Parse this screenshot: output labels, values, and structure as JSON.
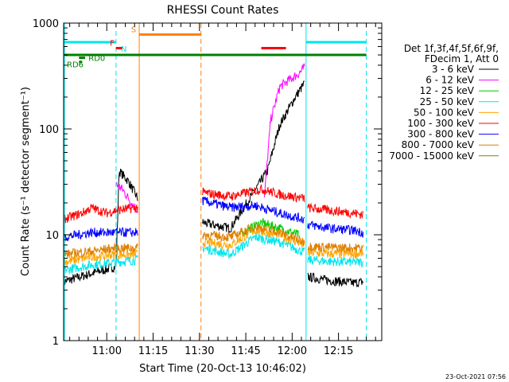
{
  "colors": {
    "background": "#ffffff",
    "axis": "#000000",
    "cyan": "#00e5ee",
    "orange": "#ff7f00",
    "red": "#ff0000",
    "green": "#008000"
  },
  "footer_timestamp": "23-Oct-2021 07:56",
  "chart_data": {
    "type": "line",
    "title": "RHESSI Count Rates",
    "xlabel": "Start Time (20-Oct-13 10:46:02)",
    "ylabel": "Count Rate (s⁻¹ detector segment⁻¹)",
    "y_scale": "log",
    "ylim": [
      1,
      1000
    ],
    "xlim": [
      "10:46:02",
      "12:29:00"
    ],
    "x_ticks": [
      "11:00",
      "11:15",
      "11:30",
      "11:45",
      "12:00",
      "12:15"
    ],
    "y_ticks": [
      "1",
      "10",
      "100",
      "1000"
    ],
    "grid": false,
    "legend_position": "right",
    "legend_header": [
      "Det 1f,3f,4f,5f,6f,9f,",
      "FDecim 1, Att 0"
    ],
    "series": [
      {
        "name": "3 - 6 keV",
        "color": "#000000",
        "segments": [
          {
            "x": [
              "10:46",
              "10:55",
              "11:03",
              "11:04",
              "11:07",
              "11:10"
            ],
            "y": [
              3.6,
              4.3,
              5.0,
              40,
              32,
              22
            ]
          },
          {
            "x": [
              "11:31",
              "11:40",
              "11:52",
              "11:56",
              "12:01",
              "12:04"
            ],
            "y": [
              13,
              11.5,
              40,
              110,
              200,
              270
            ]
          },
          {
            "x": [
              "12:05",
              "12:12",
              "12:20",
              "12:23"
            ],
            "y": [
              4.0,
              3.7,
              3.5,
              3.6
            ]
          }
        ]
      },
      {
        "name": "6 - 12 keV",
        "color": "#ff00ff",
        "segments": [
          {
            "x": [
              "11:03",
              "11:05",
              "11:08",
              "11:10"
            ],
            "y": [
              30,
              27,
              20,
              17
            ]
          },
          {
            "x": [
              "11:51",
              "11:53",
              "11:56",
              "11:59",
              "12:02",
              "12:04"
            ],
            "y": [
              22,
              120,
              250,
              290,
              330,
              380
            ]
          }
        ]
      },
      {
        "name": "12 - 25 keV",
        "color": "#00cc00",
        "segments": [
          {
            "x": [
              "11:44",
              "11:50",
              "11:56",
              "12:02"
            ],
            "y": [
              10.5,
              13,
              11.5,
              10
            ]
          }
        ]
      },
      {
        "name": "25 - 50 keV",
        "color": "#00e5ee",
        "segments": [
          {
            "x": [
              "10:46",
              "10:55",
              "11:03",
              "11:10"
            ],
            "y": [
              4.6,
              5.2,
              5.5,
              5.8
            ]
          },
          {
            "x": [
              "11:31",
              "11:40",
              "11:48",
              "11:56",
              "12:04"
            ],
            "y": [
              7.5,
              6.5,
              9.5,
              8.5,
              6.8
            ]
          },
          {
            "x": [
              "12:05",
              "12:12",
              "12:20",
              "12:23"
            ],
            "y": [
              5.8,
              5.6,
              5.5,
              5.5
            ]
          }
        ]
      },
      {
        "name": "50 - 100 keV",
        "color": "#ffa500",
        "segments": [
          {
            "x": [
              "10:46",
              "10:55",
              "11:03",
              "11:10"
            ],
            "y": [
              5.5,
              6.2,
              6.5,
              6.5
            ]
          },
          {
            "x": [
              "11:31",
              "11:40",
              "11:48",
              "11:56",
              "12:04"
            ],
            "y": [
              8.5,
              8.0,
              11,
              10,
              8.0
            ]
          },
          {
            "x": [
              "12:05",
              "12:12",
              "12:20",
              "12:23"
            ],
            "y": [
              6.8,
              6.6,
              6.6,
              6.7
            ]
          }
        ]
      },
      {
        "name": "100 - 300 keV",
        "color": "#ff0000",
        "segments": [
          {
            "x": [
              "10:46",
              "10:52",
              "10:55",
              "11:00",
              "11:03",
              "11:10"
            ],
            "y": [
              14,
              16,
              18,
              16,
              17,
              18
            ]
          },
          {
            "x": [
              "11:31",
              "11:40",
              "11:50",
              "11:56",
              "12:04"
            ],
            "y": [
              25,
              23,
              27,
              24,
              22
            ]
          },
          {
            "x": [
              "12:05",
              "12:12",
              "12:20",
              "12:23"
            ],
            "y": [
              18,
              17,
              16,
              15.5
            ]
          }
        ]
      },
      {
        "name": "300 - 800 keV",
        "color": "#0000ff",
        "segments": [
          {
            "x": [
              "10:46",
              "10:55",
              "11:03",
              "11:10"
            ],
            "y": [
              9.5,
              10.5,
              10.5,
              10.5
            ]
          },
          {
            "x": [
              "11:31",
              "11:40",
              "11:48",
              "11:56",
              "12:04"
            ],
            "y": [
              21,
              18,
              19,
              16,
              14
            ]
          },
          {
            "x": [
              "12:05",
              "12:12",
              "12:20",
              "12:23"
            ],
            "y": [
              12.5,
              11.5,
              11,
              10.5
            ]
          }
        ]
      },
      {
        "name": "800 - 7000 keV",
        "color": "#e08000",
        "segments": [
          {
            "x": [
              "10:46",
              "10:55",
              "11:03",
              "11:10"
            ],
            "y": [
              6.5,
              7.0,
              7.5,
              7.5
            ]
          },
          {
            "x": [
              "11:31",
              "11:40",
              "11:48",
              "11:56",
              "12:04"
            ],
            "y": [
              10,
              9.5,
              12,
              10.5,
              8.5
            ]
          },
          {
            "x": [
              "12:05",
              "12:12",
              "12:20",
              "12:23"
            ],
            "y": [
              7.8,
              7.6,
              7.5,
              7.5
            ]
          }
        ]
      },
      {
        "name": "7000 - 15000 keV",
        "color": "#808000",
        "segments": []
      }
    ],
    "annotations": {
      "vertical_lines": [
        {
          "x": "10:46",
          "color": "#00e5ee",
          "style": "solid"
        },
        {
          "x": "11:03",
          "color": "#00e5ee",
          "style": "dashed"
        },
        {
          "x": "11:10:30",
          "color": "#ff7f00",
          "style": "solid"
        },
        {
          "x": "11:30:30",
          "color": "#ff7f00",
          "style": "dashed"
        },
        {
          "x": "12:04:30",
          "color": "#00e5ee",
          "style": "solid"
        },
        {
          "x": "12:24",
          "color": "#00e5ee",
          "style": "dashed"
        }
      ],
      "state_bars": [
        {
          "label": "",
          "color": "#00e5ee",
          "x": [
            "10:46",
            "11:03"
          ],
          "y": 660
        },
        {
          "label": "N",
          "color": "#00e5ee",
          "x": [],
          "y": 660
        },
        {
          "label": "F",
          "color": "#ff0000",
          "x": [
            "11:03",
            "11:05"
          ],
          "y": 580
        },
        {
          "label": "S",
          "color": "#ff7f00",
          "x": [
            "11:10:30",
            "11:30:30"
          ],
          "y": 780
        },
        {
          "label": "",
          "color": "#ff0000",
          "x": [
            "11:50",
            "11:58"
          ],
          "y": 580
        },
        {
          "label": "",
          "color": "#00e5ee",
          "x": [
            "12:04:30",
            "12:24"
          ],
          "y": 660
        },
        {
          "label": "",
          "color": "#008000",
          "x": [
            "10:46",
            "12:24"
          ],
          "y": 500
        },
        {
          "label": "RD0",
          "color": "#008000",
          "x": [
            "10:51",
            "10:53"
          ],
          "y": 470
        },
        {
          "label": "RD6",
          "color": "#008000",
          "x": [
            "10:51",
            "10:52"
          ],
          "y": 430
        }
      ]
    }
  }
}
